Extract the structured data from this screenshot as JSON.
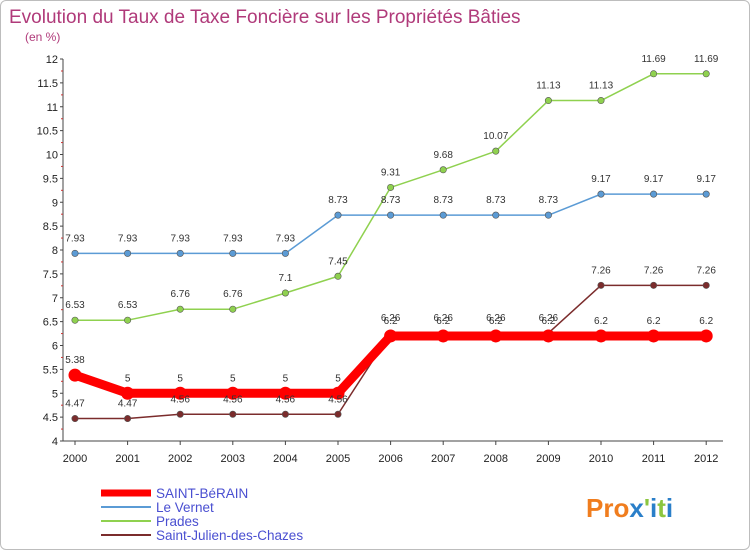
{
  "chart_data": {
    "type": "line",
    "title": "Evolution du Taux de Taxe Foncière sur les Propriétés Bâties",
    "subtitle": "(en %)",
    "xlabel": "",
    "ylabel": "(en %)",
    "categories": [
      "2000",
      "2001",
      "2002",
      "2003",
      "2004",
      "2005",
      "2006",
      "2007",
      "2008",
      "2009",
      "2010",
      "2011",
      "2012"
    ],
    "ylim": [
      4,
      12
    ],
    "yticks": [
      "4",
      "4.5",
      "5",
      "5.5",
      "6",
      "6.5",
      "7",
      "7.5",
      "8",
      "8.5",
      "9",
      "9.5",
      "10",
      "10.5",
      "11",
      "11.5",
      "12"
    ],
    "grid": false,
    "legend_position": "bottom-left",
    "series": [
      {
        "name": "SAINT-BéRAIN",
        "color": "#ff0000",
        "values": [
          5.38,
          5,
          5,
          5,
          5,
          5,
          6.2,
          6.2,
          6.2,
          6.2,
          6.2,
          6.2,
          6.2
        ],
        "labels": [
          "5.38",
          "5",
          "5",
          "5",
          "5",
          "5",
          "6.2",
          "6.2",
          "6.2",
          "6.2",
          "6.2",
          "6.2",
          "6.2"
        ]
      },
      {
        "name": "Le Vernet",
        "color": "#5b9bd5",
        "values": [
          7.93,
          7.93,
          7.93,
          7.93,
          7.93,
          8.73,
          8.73,
          8.73,
          8.73,
          8.73,
          9.17,
          9.17,
          9.17
        ],
        "labels": [
          "7.93",
          "7.93",
          "7.93",
          "7.93",
          "7.93",
          "8.73",
          "8.73",
          "8.73",
          "8.73",
          "8.73",
          "9.17",
          "9.17",
          "9.17"
        ]
      },
      {
        "name": "Prades",
        "color": "#8fd14f",
        "values": [
          6.53,
          6.53,
          6.76,
          6.76,
          7.1,
          7.45,
          9.31,
          9.68,
          10.07,
          11.13,
          11.13,
          11.69,
          11.69
        ],
        "labels": [
          "6.53",
          "6.53",
          "6.76",
          "6.76",
          "7.1",
          "7.45",
          "9.31",
          "9.68",
          "10.07",
          "11.13",
          "11.13",
          "11.69",
          "11.69"
        ]
      },
      {
        "name": "Saint-Julien-des-Chazes",
        "color": "#7b2c2c",
        "values": [
          4.47,
          4.47,
          4.56,
          4.56,
          4.56,
          4.56,
          6.26,
          6.26,
          6.26,
          6.26,
          7.26,
          7.26,
          7.26
        ],
        "labels": [
          "4.47",
          "4.47",
          "4.56",
          "4.56",
          "4.56",
          "4.56",
          "6.26",
          "6.26",
          "6.26",
          "6.26",
          "7.26",
          "7.26",
          "7.26"
        ]
      }
    ]
  },
  "logo": {
    "text": "Prox'iti",
    "colors": [
      "#f07d1e",
      "#2a7fc9",
      "#8cc63f"
    ]
  }
}
